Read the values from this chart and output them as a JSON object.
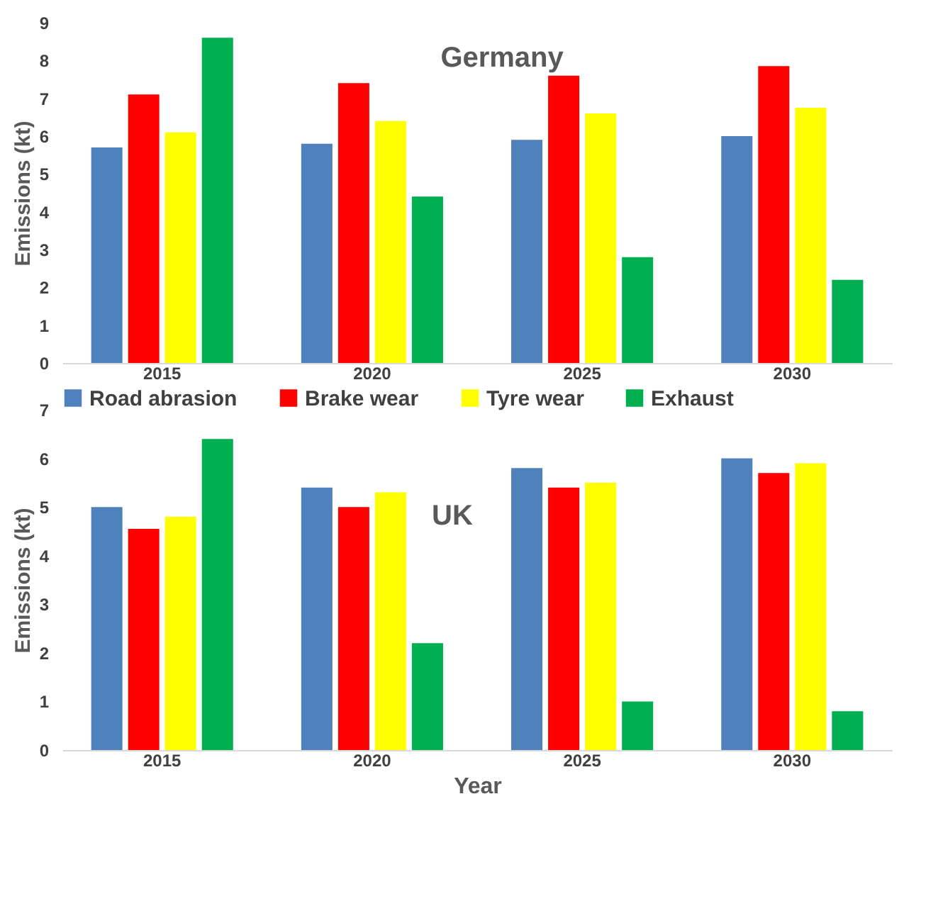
{
  "chart_data": [
    {
      "type": "bar",
      "title": "Germany",
      "ylabel": "Emissions (kt)",
      "categories": [
        "2015",
        "2020",
        "2025",
        "2030"
      ],
      "ylim": [
        0,
        9
      ],
      "yticks": [
        0,
        1,
        2,
        3,
        4,
        5,
        6,
        7,
        8,
        9
      ],
      "grid": false,
      "legend": false,
      "series": [
        {
          "color": "#4f81bd",
          "values": [
            5.7,
            5.8,
            5.9,
            6.0
          ]
        },
        {
          "color": "#ff0000",
          "values": [
            7.1,
            7.4,
            7.6,
            7.85
          ]
        },
        {
          "color": "#ffff00",
          "values": [
            6.1,
            6.4,
            6.6,
            6.75
          ]
        },
        {
          "color": "#00b050",
          "values": [
            8.6,
            4.4,
            2.8,
            2.2
          ]
        }
      ]
    },
    {
      "type": "bar",
      "title": "UK",
      "xlabel": "Year",
      "ylabel": "Emissions (kt)",
      "categories": [
        "2015",
        "2020",
        "2025",
        "2030"
      ],
      "ylim": [
        0,
        7
      ],
      "yticks": [
        0,
        1,
        2,
        3,
        4,
        5,
        6,
        7
      ],
      "grid": false,
      "legend": "top",
      "series": [
        {
          "name": "Road abrasion",
          "color": "#4f81bd",
          "values": [
            5.0,
            5.4,
            5.8,
            6.0
          ]
        },
        {
          "name": "Brake wear",
          "color": "#ff0000",
          "values": [
            4.55,
            5.0,
            5.4,
            5.7
          ]
        },
        {
          "name": "Tyre wear",
          "color": "#ffff00",
          "values": [
            4.8,
            5.3,
            5.5,
            5.9
          ]
        },
        {
          "name": "Exhaust",
          "color": "#00b050",
          "values": [
            6.4,
            2.2,
            1.0,
            0.8
          ]
        }
      ]
    }
  ]
}
